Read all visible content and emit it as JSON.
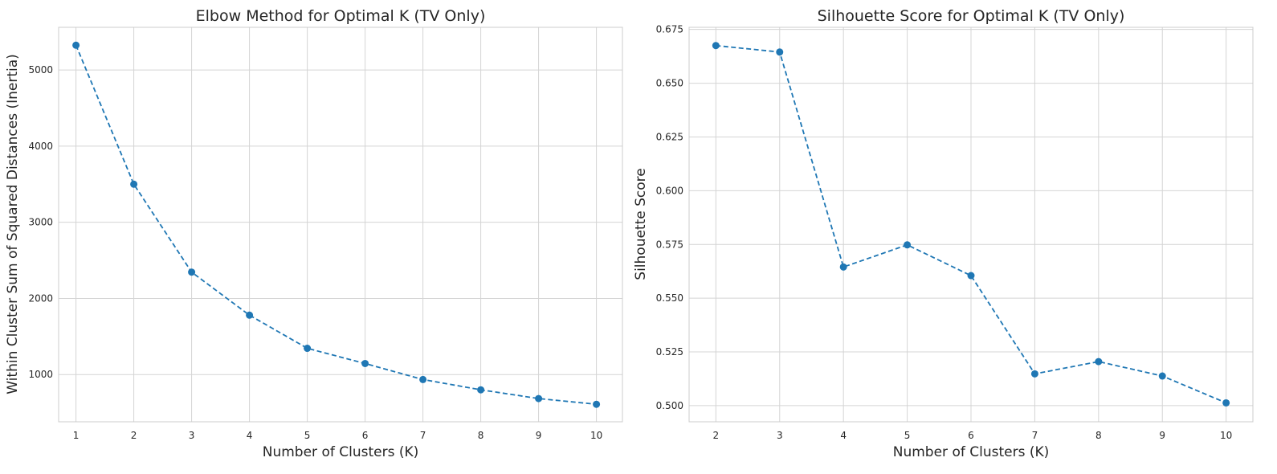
{
  "chart_data": [
    {
      "id": "left",
      "type": "line",
      "title": "Elbow Method for Optimal K (TV Only)",
      "xlabel": "Number of Clusters (K)",
      "ylabel": "Within Cluster Sum of Squared Distances (Inertia)",
      "x": [
        1,
        2,
        3,
        4,
        5,
        6,
        7,
        8,
        9,
        10
      ],
      "series": [
        {
          "values": [
            5325,
            3500,
            2345,
            1780,
            1345,
            1145,
            935,
            800,
            685,
            610
          ]
        }
      ],
      "xlim": [
        0.7,
        10.45
      ],
      "ylim": [
        380,
        5560
      ],
      "xticks": [
        1,
        2,
        3,
        4,
        5,
        6,
        7,
        8,
        9,
        10
      ],
      "yticks": [
        1000,
        2000,
        3000,
        4000,
        5000
      ],
      "ytick_labels": [
        "1000",
        "2000",
        "3000",
        "4000",
        "5000"
      ],
      "grid": true,
      "marker": "circle",
      "linestyle": "dashed",
      "color": "#1f77b4"
    },
    {
      "id": "right",
      "type": "line",
      "title": "Silhouette Score for Optimal K (TV Only)",
      "xlabel": "Number of Clusters (K)",
      "ylabel": "Silhouette Score",
      "x": [
        2,
        3,
        4,
        5,
        6,
        7,
        8,
        9,
        10
      ],
      "series": [
        {
          "values": [
            0.6675,
            0.6645,
            0.5645,
            0.5748,
            0.5605,
            0.5148,
            0.5205,
            0.5138,
            0.5013
          ]
        }
      ],
      "xlim": [
        1.58,
        10.42
      ],
      "ylim": [
        0.4925,
        0.676
      ],
      "xticks": [
        2,
        3,
        4,
        5,
        6,
        7,
        8,
        9,
        10
      ],
      "yticks": [
        0.5,
        0.525,
        0.55,
        0.575,
        0.6,
        0.625,
        0.65,
        0.675
      ],
      "ytick_labels": [
        "0.500",
        "0.525",
        "0.550",
        "0.575",
        "0.600",
        "0.625",
        "0.650",
        "0.675"
      ],
      "grid": true,
      "marker": "circle",
      "linestyle": "dashed",
      "color": "#1f77b4"
    }
  ]
}
